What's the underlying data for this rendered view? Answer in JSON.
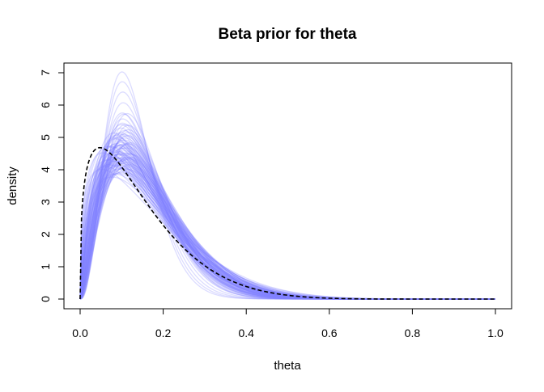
{
  "chart_data": {
    "type": "line",
    "title": "Beta prior for theta",
    "xlabel": "theta",
    "ylabel": "density",
    "xlim": [
      0,
      1
    ],
    "ylim": [
      0,
      7
    ],
    "xticks": [
      "0.0",
      "0.2",
      "0.4",
      "0.6",
      "0.8",
      "1.0"
    ],
    "yticks": [
      "0",
      "1",
      "2",
      "3",
      "4",
      "5",
      "6",
      "7"
    ],
    "grid": false,
    "legend": "none",
    "mean_curve": {
      "distribution": "beta",
      "alpha": 1.35,
      "beta": 8.0,
      "mode": [
        0.05,
        4.8
      ],
      "color": "#000000",
      "style": "dashed"
    },
    "sample_curves": {
      "count": 100,
      "distribution": "beta",
      "color": "#8080ff",
      "mode_x_range": [
        0.03,
        0.16
      ],
      "peak_density_range": [
        3.6,
        7.5
      ],
      "samples": [
        [
          1.4,
          8.0
        ],
        [
          1.6,
          9.5
        ],
        [
          1.8,
          9.0
        ],
        [
          2.0,
          12.0
        ],
        [
          1.5,
          7.0
        ],
        [
          2.2,
          11.0
        ],
        [
          1.9,
          10.5
        ],
        [
          2.5,
          13.0
        ],
        [
          1.7,
          8.5
        ],
        [
          2.1,
          9.8
        ],
        [
          2.4,
          14.0
        ],
        [
          1.3,
          6.5
        ],
        [
          2.8,
          15.0
        ],
        [
          2.0,
          10.0
        ],
        [
          1.6,
          8.2
        ],
        [
          2.3,
          12.5
        ],
        [
          1.8,
          9.6
        ],
        [
          3.0,
          18.0
        ],
        [
          2.6,
          14.5
        ],
        [
          1.9,
          8.8
        ],
        [
          2.2,
          10.2
        ],
        [
          1.5,
          8.8
        ],
        [
          2.7,
          16.0
        ],
        [
          2.0,
          11.5
        ],
        [
          1.7,
          9.2
        ],
        [
          2.4,
          12.0
        ],
        [
          3.2,
          20.0
        ],
        [
          2.1,
          11.0
        ],
        [
          1.8,
          10.0
        ],
        [
          2.5,
          12.8
        ],
        [
          1.6,
          7.6
        ],
        [
          2.9,
          16.5
        ],
        [
          2.3,
          11.2
        ],
        [
          2.0,
          9.4
        ],
        [
          1.9,
          11.0
        ],
        [
          2.6,
          13.5
        ],
        [
          1.4,
          7.2
        ],
        [
          2.2,
          12.8
        ],
        [
          3.4,
          22.0
        ],
        [
          2.0,
          10.8
        ],
        [
          1.8,
          8.4
        ],
        [
          2.5,
          14.8
        ],
        [
          2.1,
          10.4
        ],
        [
          2.7,
          13.8
        ],
        [
          1.6,
          9.0
        ],
        [
          2.3,
          13.5
        ],
        [
          1.9,
          9.9
        ],
        [
          3.1,
          17.0
        ],
        [
          2.4,
          11.6
        ],
        [
          2.0,
          12.4
        ],
        [
          1.7,
          8.0
        ],
        [
          2.8,
          14.2
        ],
        [
          2.2,
          11.8
        ],
        [
          1.5,
          7.8
        ],
        [
          2.6,
          15.5
        ],
        [
          2.1,
          9.6
        ],
        [
          3.6,
          24.0
        ],
        [
          2.3,
          10.6
        ],
        [
          1.9,
          10.2
        ],
        [
          2.5,
          11.8
        ],
        [
          2.0,
          11.2
        ],
        [
          1.8,
          9.3
        ],
        [
          2.9,
          17.8
        ],
        [
          2.4,
          13.2
        ],
        [
          1.6,
          8.6
        ],
        [
          2.2,
          10.8
        ],
        [
          2.7,
          15.2
        ],
        [
          2.0,
          9.8
        ],
        [
          1.7,
          10.0
        ],
        [
          3.0,
          16.2
        ],
        [
          2.3,
          12.2
        ],
        [
          2.1,
          12.6
        ],
        [
          1.9,
          9.1
        ],
        [
          2.6,
          12.4
        ],
        [
          1.5,
          8.1
        ],
        [
          2.8,
          16.8
        ],
        [
          2.2,
          11.4
        ],
        [
          2.4,
          12.9
        ],
        [
          2.0,
          10.6
        ],
        [
          3.3,
          19.0
        ],
        [
          1.8,
          10.4
        ],
        [
          2.5,
          13.6
        ],
        [
          2.1,
          10.9
        ],
        [
          1.6,
          8.3
        ],
        [
          2.7,
          14.6
        ],
        [
          2.3,
          11.9
        ],
        [
          2.0,
          11.9
        ],
        [
          1.9,
          9.7
        ],
        [
          2.6,
          14.1
        ],
        [
          2.2,
          12.1
        ],
        [
          3.8,
          26.0
        ],
        [
          2.4,
          11.4
        ],
        [
          1.7,
          8.9
        ],
        [
          2.9,
          15.6
        ],
        [
          2.1,
          11.7
        ],
        [
          2.0,
          10.3
        ],
        [
          2.5,
          12.2
        ],
        [
          1.8,
          8.7
        ],
        [
          2.3,
          12.7
        ],
        [
          2.2,
          10.5
        ]
      ]
    }
  }
}
